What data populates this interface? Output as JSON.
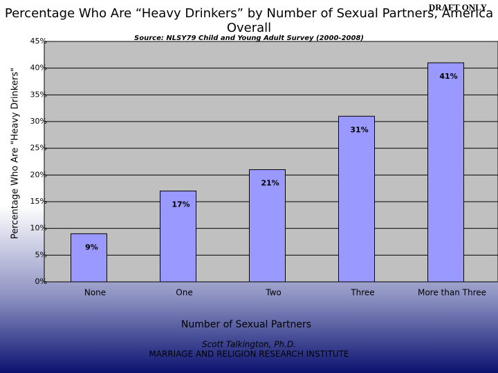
{
  "chart_data": {
    "type": "bar",
    "title": "Percentage Who Are “Heavy Drinkers” by Number of Sexual Partners, America Overall",
    "subtitle": "Source: NLSY79 Child and Young Adult Survey (2000-2008)",
    "watermark": "DRAFT ONLY",
    "x_label": "Number of Sexual Partners",
    "y_label": "Percentage Who Are \"Heavy Drinkers\"",
    "categories": [
      "None",
      "One",
      "Two",
      "Three",
      "More than Three"
    ],
    "values": [
      9,
      17,
      21,
      31,
      41
    ],
    "value_labels": [
      "9%",
      "17%",
      "21%",
      "31%",
      "41%"
    ],
    "color": "#9999ff",
    "ylim": [
      0,
      45
    ],
    "yticks": [
      {
        "value": 0,
        "label": "0%"
      },
      {
        "value": 5,
        "label": "5%"
      },
      {
        "value": 10,
        "label": "10%"
      },
      {
        "value": 15,
        "label": "15%"
      },
      {
        "value": 20,
        "label": "20%"
      },
      {
        "value": 25,
        "label": "25%"
      },
      {
        "value": 30,
        "label": "30%"
      },
      {
        "value": 35,
        "label": "35%"
      },
      {
        "value": 40,
        "label": "40%"
      },
      {
        "value": 45,
        "label": "45%"
      }
    ],
    "grid": true,
    "footer": [
      "Scott Talkington, Ph.D.",
      "MARRIAGE AND RELIGION RESEARCH INSTITUTE"
    ]
  }
}
